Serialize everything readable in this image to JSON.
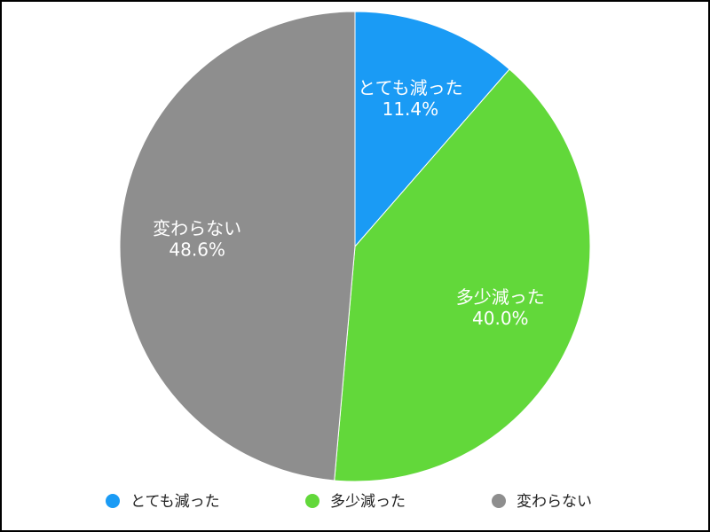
{
  "chart_data": {
    "type": "pie",
    "categories": [
      "とても減った",
      "多少減った",
      "変わらない"
    ],
    "values": [
      11.4,
      40.0,
      48.6
    ],
    "value_labels": [
      "11.4%",
      "40.0%",
      "48.6%"
    ],
    "colors": [
      "#1a9bf5",
      "#62d83a",
      "#8e8e8e"
    ],
    "legend": "bottom"
  }
}
